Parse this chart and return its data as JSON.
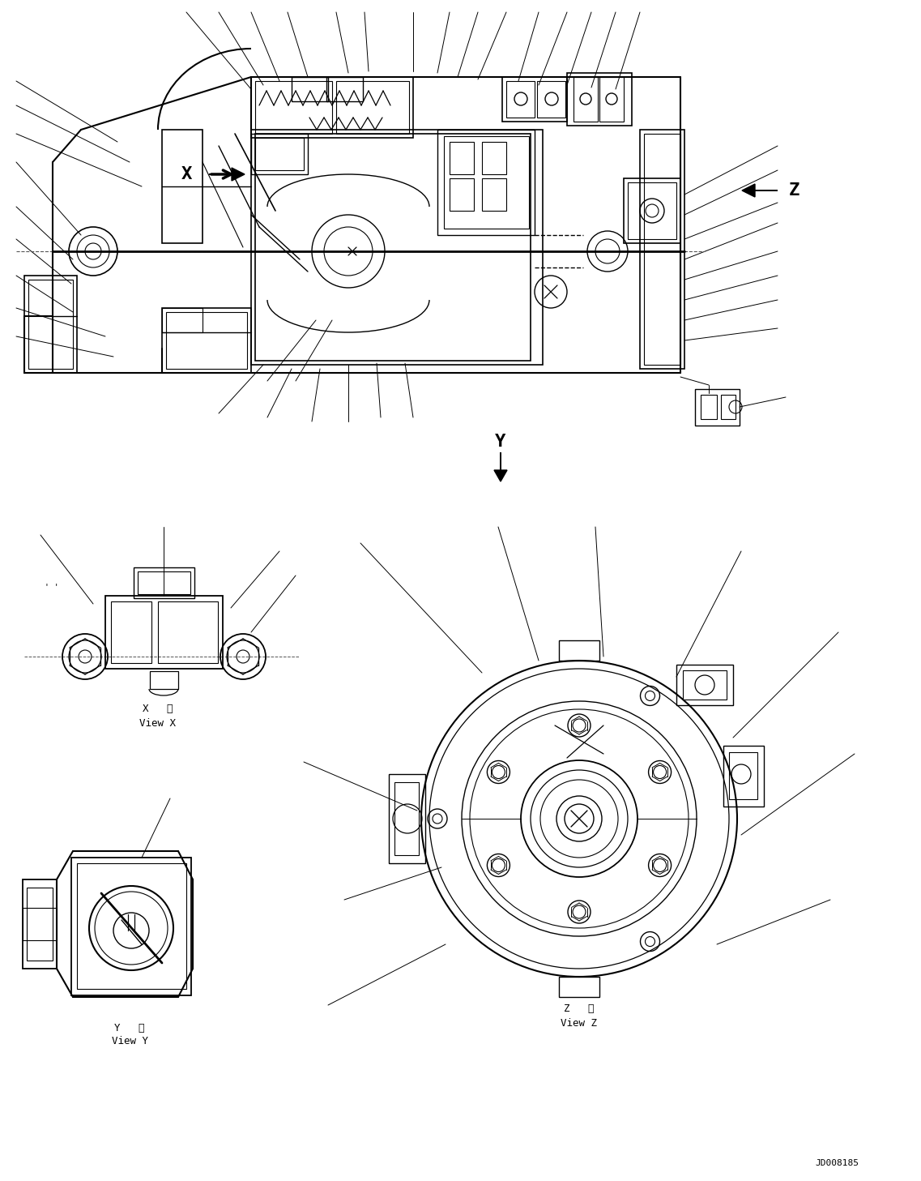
{
  "bg_color": "#ffffff",
  "line_color": "#000000",
  "figsize": [
    11.37,
    14.57
  ],
  "dpi": 100,
  "doc_number": "JD008185",
  "view_x_jp": "X   視",
  "view_x_en": "View X",
  "view_y_jp": "Y   視",
  "view_y_en": "View Y",
  "view_z_jp": "Z   視",
  "view_z_en": "View Z",
  "label_x": "X",
  "label_y": "Y",
  "label_z": "Z"
}
